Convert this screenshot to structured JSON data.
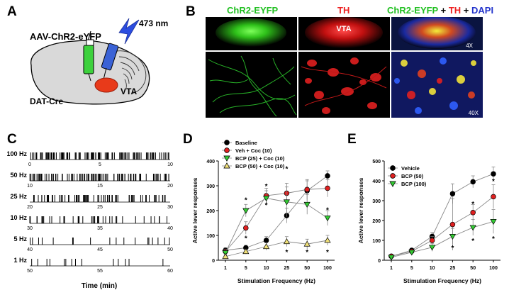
{
  "panels": {
    "A": {
      "letter": "A",
      "virus_label": "AAV-ChR2-eYFP",
      "laser_label": "473 nm",
      "region_label": "VTA",
      "mouse_label": "DAT-Cre"
    },
    "B": {
      "letter": "B",
      "col1_title": "ChR2-EYFP",
      "col2_title": "TH",
      "col3_title_parts": [
        {
          "text": "ChR2-EYFP",
          "color": "#22c022"
        },
        {
          "text": " + ",
          "color": "#000000"
        },
        {
          "text": "TH",
          "color": "#ee2222"
        },
        {
          "text": " + ",
          "color": "#000000"
        },
        {
          "text": "DAPI",
          "color": "#2233cc"
        }
      ],
      "vta_label": "VTA",
      "mag_top": "4X",
      "mag_bottom": "40X"
    },
    "C": {
      "letter": "C",
      "xlabel": "Time (min)",
      "rows": [
        {
          "freq": "100 Hz",
          "ticks": [
            "0",
            "5",
            "10"
          ]
        },
        {
          "freq": "50 Hz",
          "ticks": [
            "10",
            "15",
            "20"
          ]
        },
        {
          "freq": "25 Hz",
          "ticks": [
            "20",
            "25",
            "30"
          ]
        },
        {
          "freq": "10 Hz",
          "ticks": [
            "30",
            "35",
            "40"
          ]
        },
        {
          "freq": "5 Hz",
          "ticks": [
            "40",
            "45",
            "50"
          ]
        },
        {
          "freq": "1 Hz",
          "ticks": [
            "50",
            "55",
            "60"
          ]
        }
      ]
    },
    "D": {
      "letter": "D"
    },
    "E": {
      "letter": "E"
    }
  },
  "colors": {
    "black": "#000000",
    "red": "#e02020",
    "green": "#33cc33",
    "yellow": "#f2e27a"
  },
  "chart_data": [
    {
      "id": "D",
      "type": "line",
      "xlabel": "Stimulation Frequency (Hz)",
      "ylabel": "Active lever responses",
      "categories": [
        "1",
        "5",
        "10",
        "25",
        "50",
        "100"
      ],
      "ylim": [
        0,
        400
      ],
      "yticks": [
        "0",
        "100",
        "200",
        "300",
        "400"
      ],
      "legend_position": "top-left",
      "series": [
        {
          "name": "Baseline",
          "color": "#000000",
          "marker": "circle",
          "values": [
            40,
            50,
            80,
            180,
            280,
            340
          ],
          "errors": [
            10,
            10,
            15,
            30,
            40,
            20
          ]
        },
        {
          "name": "Veh + Coc (10)",
          "color": "#e02020",
          "marker": "circle",
          "values": [
            35,
            130,
            260,
            270,
            285,
            290
          ],
          "errors": [
            10,
            25,
            30,
            40,
            40,
            35
          ]
        },
        {
          "name": "BCP (25) + Coc (10)",
          "color": "#33cc33",
          "marker": "triangle-down",
          "values": [
            30,
            200,
            250,
            235,
            225,
            170
          ],
          "errors": [
            10,
            25,
            30,
            60,
            40,
            30
          ]
        },
        {
          "name": "BCP (50) + Coc (10)",
          "color": "#f2e27a",
          "marker": "triangle-up",
          "values": [
            15,
            35,
            55,
            75,
            65,
            80
          ],
          "errors": [
            5,
            10,
            15,
            20,
            20,
            20
          ]
        }
      ],
      "annotations": [
        {
          "x": "5",
          "y": 245,
          "text": "*"
        },
        {
          "x": "5",
          "y": 90,
          "text": "*"
        },
        {
          "x": "10",
          "y": 300,
          "text": "*"
        },
        {
          "x": "10",
          "y": 225,
          "text": "*"
        },
        {
          "x": "25",
          "y": 370,
          "text": "*"
        },
        {
          "x": "25",
          "y": 35,
          "text": "*"
        },
        {
          "x": "50",
          "y": 35,
          "text": "*"
        },
        {
          "x": "100",
          "y": 345,
          "text": "*"
        },
        {
          "x": "100",
          "y": 205,
          "text": "*"
        },
        {
          "x": "100",
          "y": 35,
          "text": "*"
        }
      ]
    },
    {
      "id": "E",
      "type": "line",
      "xlabel": "Stimulation Frequency (Hz)",
      "ylabel": "Active lever responses",
      "categories": [
        "1",
        "5",
        "10",
        "25",
        "50",
        "100"
      ],
      "ylim": [
        0,
        500
      ],
      "yticks": [
        "0",
        "100",
        "200",
        "300",
        "400",
        "500"
      ],
      "legend_position": "top-left",
      "series": [
        {
          "name": "Vehicle",
          "color": "#000000",
          "marker": "circle",
          "values": [
            20,
            50,
            120,
            335,
            395,
            435
          ],
          "errors": [
            5,
            10,
            20,
            50,
            30,
            35
          ]
        },
        {
          "name": "BCP (50)",
          "color": "#e02020",
          "marker": "circle",
          "values": [
            20,
            45,
            100,
            180,
            240,
            320
          ],
          "errors": [
            5,
            10,
            20,
            130,
            40,
            60
          ]
        },
        {
          "name": "BCP (100)",
          "color": "#33cc33",
          "marker": "triangle-down",
          "values": [
            15,
            40,
            65,
            120,
            165,
            195
          ],
          "errors": [
            5,
            10,
            20,
            40,
            40,
            60
          ]
        }
      ],
      "annotations": [
        {
          "x": "25",
          "y": 65,
          "text": "*"
        },
        {
          "x": "50",
          "y": 285,
          "text": "*"
        },
        {
          "x": "50",
          "y": 100,
          "text": "*"
        },
        {
          "x": "100",
          "y": 400,
          "text": "*"
        },
        {
          "x": "100",
          "y": 110,
          "text": "*"
        }
      ]
    }
  ]
}
